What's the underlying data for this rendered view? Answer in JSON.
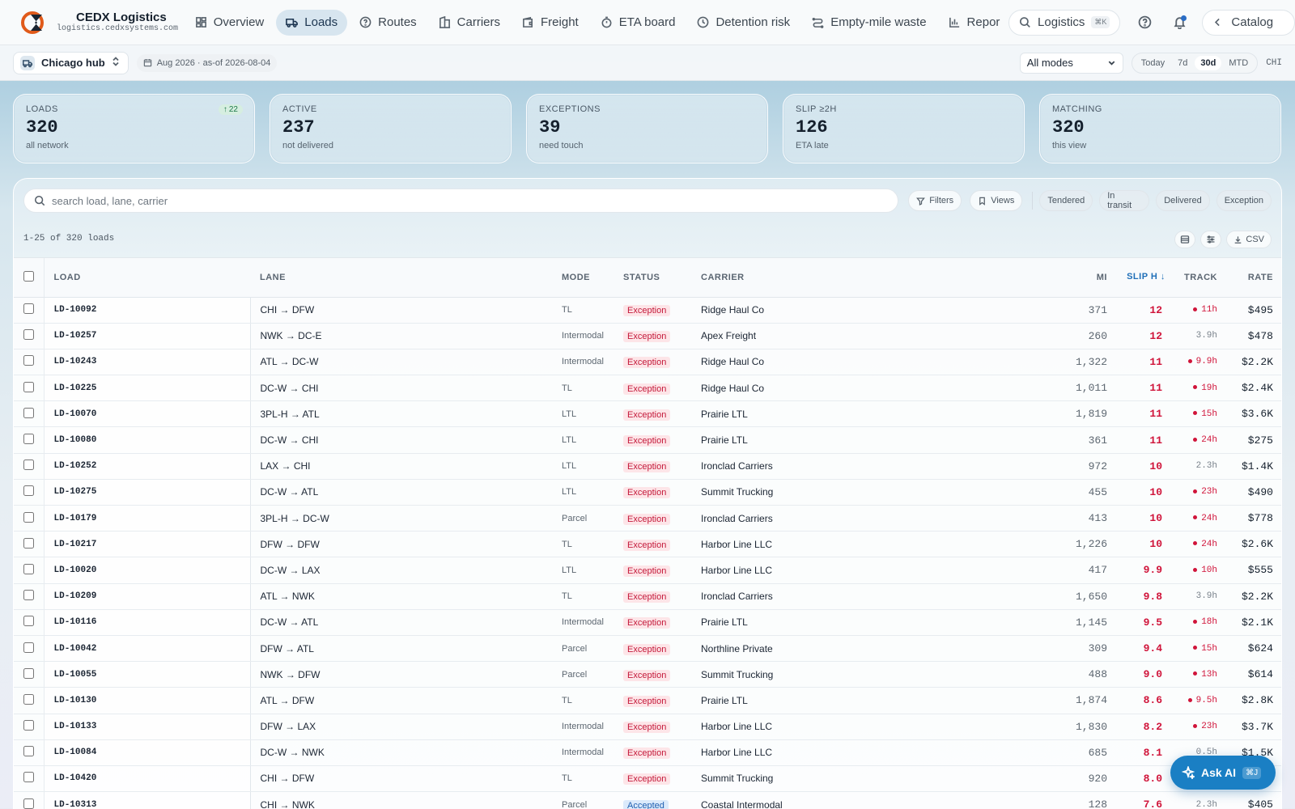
{
  "brand": {
    "name": "CEDX Logistics",
    "url": "logistics.cedxsystems.com"
  },
  "nav": {
    "items": [
      {
        "label": "Overview",
        "icon": "grid-icon"
      },
      {
        "label": "Loads",
        "icon": "truck-icon",
        "active": true
      },
      {
        "label": "Routes",
        "icon": "route-icon"
      },
      {
        "label": "Carriers",
        "icon": "building-icon"
      },
      {
        "label": "Freight",
        "icon": "wallet-icon"
      },
      {
        "label": "ETA board",
        "icon": "timer-icon"
      },
      {
        "label": "Detention risk",
        "icon": "clock-icon"
      },
      {
        "label": "Empty-mile waste",
        "icon": "waste-icon"
      },
      {
        "label": "Repor",
        "icon": "bar-chart-icon"
      }
    ],
    "search_label": "Logistics",
    "search_kbd": "⌘K",
    "catalog_label": "Catalog"
  },
  "subbar": {
    "hub": "Chicago hub",
    "date": "Aug 2026 · as-of 2026-08-04",
    "mode": "All modes",
    "ranges": [
      "Today",
      "7d",
      "30d",
      "MTD"
    ],
    "active_range": "30d",
    "location": "CHI"
  },
  "kpis": [
    {
      "label": "LOADS",
      "value": "320",
      "sub": "all network",
      "delta": "22"
    },
    {
      "label": "ACTIVE",
      "value": "237",
      "sub": "not delivered"
    },
    {
      "label": "EXCEPTIONS",
      "value": "39",
      "sub": "need touch"
    },
    {
      "label": "SLIP ≥2H",
      "value": "126",
      "sub": "ETA late"
    },
    {
      "label": "MATCHING",
      "value": "320",
      "sub": "this view"
    }
  ],
  "table_controls": {
    "search_placeholder": "search load, lane, carrier",
    "filters_label": "Filters",
    "views_label": "Views",
    "status_chips": [
      "Tendered",
      "In transit",
      "Delivered",
      "Exception"
    ],
    "count_text": "1-25 of 320 loads",
    "csv_label": "CSV"
  },
  "columns": {
    "load": "LOAD",
    "lane": "LANE",
    "mode": "MODE",
    "status": "STATUS",
    "carrier": "CARRIER",
    "mi": "MI",
    "slip": "SLIP H",
    "track": "TRACK",
    "rate": "RATE"
  },
  "rows": [
    {
      "load": "LD-10092",
      "lane": "CHI → DFW",
      "mode": "TL",
      "status": "Exception",
      "carrier": "Ridge Haul Co",
      "mi": "371",
      "slip": "12",
      "track": "11h",
      "alert": true,
      "rate": "$495"
    },
    {
      "load": "LD-10257",
      "lane": "NWK → DC-E",
      "mode": "Intermodal",
      "status": "Exception",
      "carrier": "Apex Freight",
      "mi": "260",
      "slip": "12",
      "track": "3.9h",
      "alert": false,
      "rate": "$478"
    },
    {
      "load": "LD-10243",
      "lane": "ATL → DC-W",
      "mode": "Intermodal",
      "status": "Exception",
      "carrier": "Ridge Haul Co",
      "mi": "1,322",
      "slip": "11",
      "track": "9.9h",
      "alert": true,
      "rate": "$2.2K"
    },
    {
      "load": "LD-10225",
      "lane": "DC-W → CHI",
      "mode": "TL",
      "status": "Exception",
      "carrier": "Ridge Haul Co",
      "mi": "1,011",
      "slip": "11",
      "track": "19h",
      "alert": true,
      "rate": "$2.4K"
    },
    {
      "load": "LD-10070",
      "lane": "3PL-H → ATL",
      "mode": "LTL",
      "status": "Exception",
      "carrier": "Prairie LTL",
      "mi": "1,819",
      "slip": "11",
      "track": "15h",
      "alert": true,
      "rate": "$3.6K"
    },
    {
      "load": "LD-10080",
      "lane": "DC-W → CHI",
      "mode": "LTL",
      "status": "Exception",
      "carrier": "Prairie LTL",
      "mi": "361",
      "slip": "11",
      "track": "24h",
      "alert": true,
      "rate": "$275"
    },
    {
      "load": "LD-10252",
      "lane": "LAX → CHI",
      "mode": "LTL",
      "status": "Exception",
      "carrier": "Ironclad Carriers",
      "mi": "972",
      "slip": "10",
      "track": "2.3h",
      "alert": false,
      "rate": "$1.4K"
    },
    {
      "load": "LD-10275",
      "lane": "DC-W → ATL",
      "mode": "LTL",
      "status": "Exception",
      "carrier": "Summit Trucking",
      "mi": "455",
      "slip": "10",
      "track": "23h",
      "alert": true,
      "rate": "$490"
    },
    {
      "load": "LD-10179",
      "lane": "3PL-H → DC-W",
      "mode": "Parcel",
      "status": "Exception",
      "carrier": "Ironclad Carriers",
      "mi": "413",
      "slip": "10",
      "track": "24h",
      "alert": true,
      "rate": "$778"
    },
    {
      "load": "LD-10217",
      "lane": "DFW → DFW",
      "mode": "TL",
      "status": "Exception",
      "carrier": "Harbor Line LLC",
      "mi": "1,226",
      "slip": "10",
      "track": "24h",
      "alert": true,
      "rate": "$2.6K"
    },
    {
      "load": "LD-10020",
      "lane": "DC-W → LAX",
      "mode": "LTL",
      "status": "Exception",
      "carrier": "Harbor Line LLC",
      "mi": "417",
      "slip": "9.9",
      "track": "10h",
      "alert": true,
      "rate": "$555"
    },
    {
      "load": "LD-10209",
      "lane": "ATL → NWK",
      "mode": "TL",
      "status": "Exception",
      "carrier": "Ironclad Carriers",
      "mi": "1,650",
      "slip": "9.8",
      "track": "3.9h",
      "alert": false,
      "rate": "$2.2K"
    },
    {
      "load": "LD-10116",
      "lane": "DC-W → ATL",
      "mode": "Intermodal",
      "status": "Exception",
      "carrier": "Prairie LTL",
      "mi": "1,145",
      "slip": "9.5",
      "track": "18h",
      "alert": true,
      "rate": "$2.1K"
    },
    {
      "load": "LD-10042",
      "lane": "DFW → ATL",
      "mode": "Parcel",
      "status": "Exception",
      "carrier": "Northline Private",
      "mi": "309",
      "slip": "9.4",
      "track": "15h",
      "alert": true,
      "rate": "$624"
    },
    {
      "load": "LD-10055",
      "lane": "NWK → DFW",
      "mode": "Parcel",
      "status": "Exception",
      "carrier": "Summit Trucking",
      "mi": "488",
      "slip": "9.0",
      "track": "13h",
      "alert": true,
      "rate": "$614"
    },
    {
      "load": "LD-10130",
      "lane": "ATL → DFW",
      "mode": "TL",
      "status": "Exception",
      "carrier": "Prairie LTL",
      "mi": "1,874",
      "slip": "8.6",
      "track": "9.5h",
      "alert": true,
      "rate": "$2.8K"
    },
    {
      "load": "LD-10133",
      "lane": "DFW → LAX",
      "mode": "Intermodal",
      "status": "Exception",
      "carrier": "Harbor Line LLC",
      "mi": "1,830",
      "slip": "8.2",
      "track": "23h",
      "alert": true,
      "rate": "$3.7K"
    },
    {
      "load": "LD-10084",
      "lane": "DC-W → NWK",
      "mode": "Intermodal",
      "status": "Exception",
      "carrier": "Harbor Line LLC",
      "mi": "685",
      "slip": "8.1",
      "track": "0.5h",
      "alert": false,
      "rate": "$1.5K"
    },
    {
      "load": "LD-10420",
      "lane": "CHI → DFW",
      "mode": "TL",
      "status": "Exception",
      "carrier": "Summit Trucking",
      "mi": "920",
      "slip": "8.0",
      "track": "",
      "alert": false,
      "rate": ""
    },
    {
      "load": "LD-10313",
      "lane": "CHI → NWK",
      "mode": "Parcel",
      "status": "Accepted",
      "carrier": "Coastal Intermodal",
      "mi": "128",
      "slip": "7.6",
      "track": "2.3h",
      "alert": false,
      "rate": "$405"
    }
  ],
  "ask_ai": {
    "label": "Ask AI",
    "kbd": "⌘J"
  },
  "colors": {
    "accent": "#1a7fc4",
    "danger": "#d0143a",
    "nav_active_bg": "#d7e5ef"
  }
}
